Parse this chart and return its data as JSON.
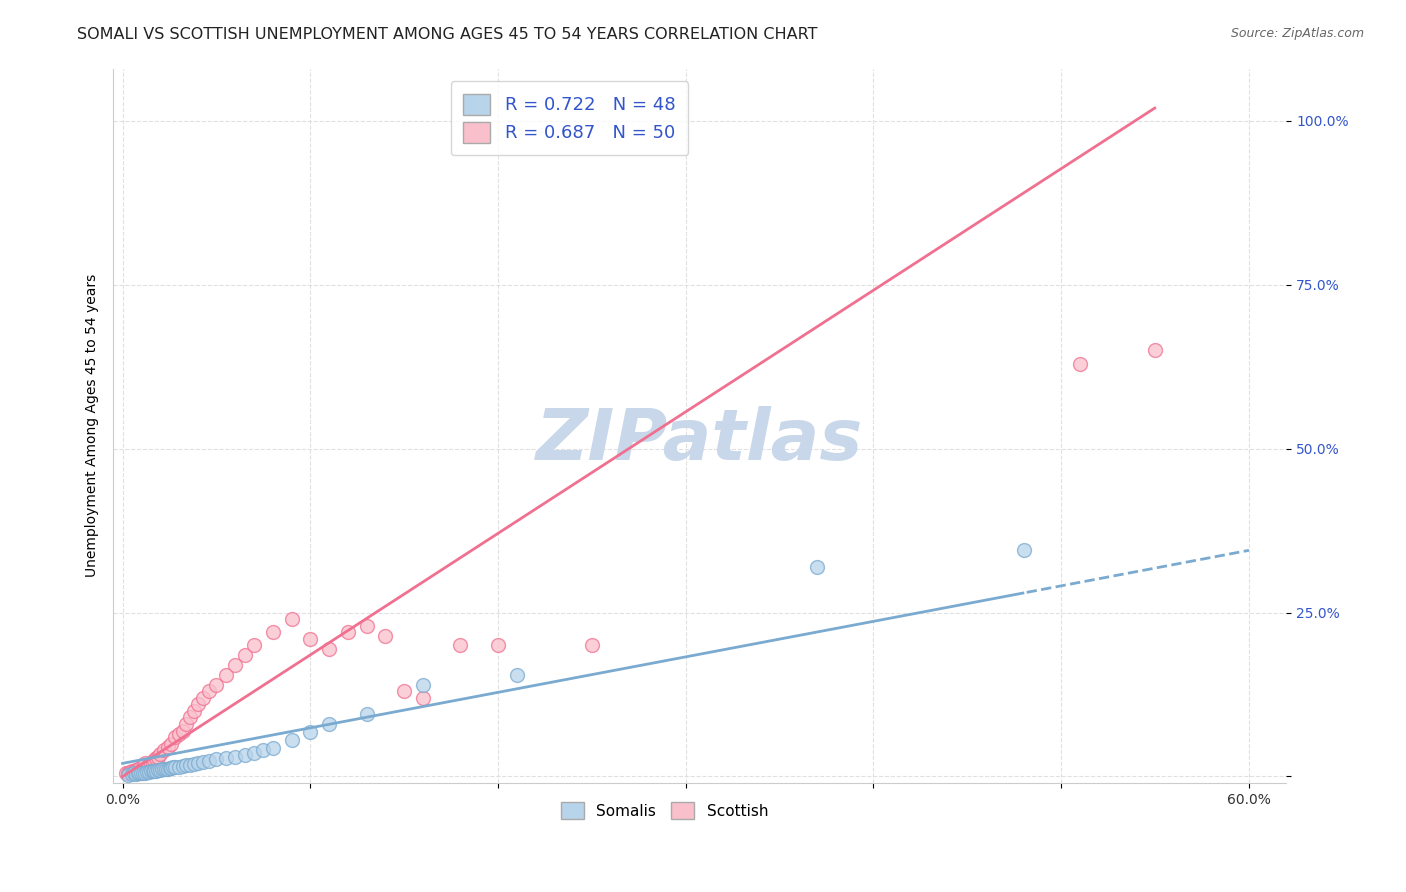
{
  "title": "SOMALI VS SCOTTISH UNEMPLOYMENT AMONG AGES 45 TO 54 YEARS CORRELATION CHART",
  "source": "Source: ZipAtlas.com",
  "xlabel_ticks": [
    "0.0%",
    "",
    "",
    "",
    "",
    "",
    "60.0%"
  ],
  "xlabel_vals": [
    0.0,
    0.1,
    0.2,
    0.3,
    0.4,
    0.5,
    0.6
  ],
  "ylabel_ticks": [
    "",
    "25.0%",
    "50.0%",
    "75.0%",
    "100.0%"
  ],
  "ylabel_vals": [
    0.0,
    0.25,
    0.5,
    0.75,
    1.0
  ],
  "xlim": [
    -0.005,
    0.62
  ],
  "ylim": [
    -0.01,
    1.08
  ],
  "somali_R": 0.722,
  "somali_N": 48,
  "scottish_R": 0.687,
  "scottish_N": 50,
  "somali_color": "#b8d4ea",
  "scottish_color": "#f9c0cc",
  "somali_edge_color": "#7aaad0",
  "scottish_edge_color": "#f07090",
  "somali_line_color": "#7aaad0",
  "scottish_line_color": "#f07090",
  "legend_R_color": "#3355cc",
  "watermark_color": "#c8d8ea",
  "background_color": "#ffffff",
  "grid_color": "#e0e0e0",
  "somali_x": [
    0.003,
    0.005,
    0.006,
    0.007,
    0.008,
    0.009,
    0.01,
    0.011,
    0.012,
    0.013,
    0.014,
    0.015,
    0.016,
    0.017,
    0.018,
    0.019,
    0.02,
    0.021,
    0.022,
    0.023,
    0.024,
    0.025,
    0.026,
    0.027,
    0.028,
    0.03,
    0.032,
    0.034,
    0.036,
    0.038,
    0.04,
    0.043,
    0.046,
    0.05,
    0.055,
    0.06,
    0.065,
    0.07,
    0.075,
    0.08,
    0.09,
    0.1,
    0.11,
    0.13,
    0.16,
    0.21,
    0.37,
    0.48
  ],
  "somali_y": [
    0.003,
    0.004,
    0.005,
    0.004,
    0.005,
    0.006,
    0.005,
    0.006,
    0.006,
    0.007,
    0.007,
    0.008,
    0.008,
    0.009,
    0.009,
    0.01,
    0.01,
    0.011,
    0.011,
    0.012,
    0.012,
    0.013,
    0.013,
    0.014,
    0.014,
    0.015,
    0.016,
    0.017,
    0.018,
    0.019,
    0.02,
    0.022,
    0.024,
    0.026,
    0.028,
    0.03,
    0.033,
    0.036,
    0.04,
    0.044,
    0.055,
    0.068,
    0.08,
    0.095,
    0.14,
    0.155,
    0.32,
    0.345
  ],
  "scottish_x": [
    0.002,
    0.003,
    0.004,
    0.005,
    0.006,
    0.007,
    0.008,
    0.009,
    0.01,
    0.011,
    0.012,
    0.013,
    0.014,
    0.015,
    0.016,
    0.017,
    0.018,
    0.019,
    0.02,
    0.022,
    0.024,
    0.026,
    0.028,
    0.03,
    0.032,
    0.034,
    0.036,
    0.038,
    0.04,
    0.043,
    0.046,
    0.05,
    0.055,
    0.06,
    0.065,
    0.07,
    0.08,
    0.09,
    0.1,
    0.11,
    0.12,
    0.13,
    0.14,
    0.15,
    0.16,
    0.18,
    0.2,
    0.25,
    0.51,
    0.55
  ],
  "scottish_y": [
    0.005,
    0.006,
    0.007,
    0.008,
    0.009,
    0.01,
    0.011,
    0.012,
    0.01,
    0.012,
    0.02,
    0.015,
    0.017,
    0.02,
    0.022,
    0.025,
    0.028,
    0.03,
    0.035,
    0.04,
    0.045,
    0.05,
    0.06,
    0.065,
    0.07,
    0.08,
    0.09,
    0.1,
    0.11,
    0.12,
    0.13,
    0.14,
    0.155,
    0.17,
    0.185,
    0.2,
    0.22,
    0.24,
    0.21,
    0.195,
    0.22,
    0.23,
    0.215,
    0.13,
    0.12,
    0.2,
    0.2,
    0.2,
    0.63,
    0.65
  ],
  "title_fontsize": 11.5,
  "axis_label_fontsize": 10,
  "tick_fontsize": 10,
  "legend_fontsize": 13,
  "watermark_fontsize": 52
}
